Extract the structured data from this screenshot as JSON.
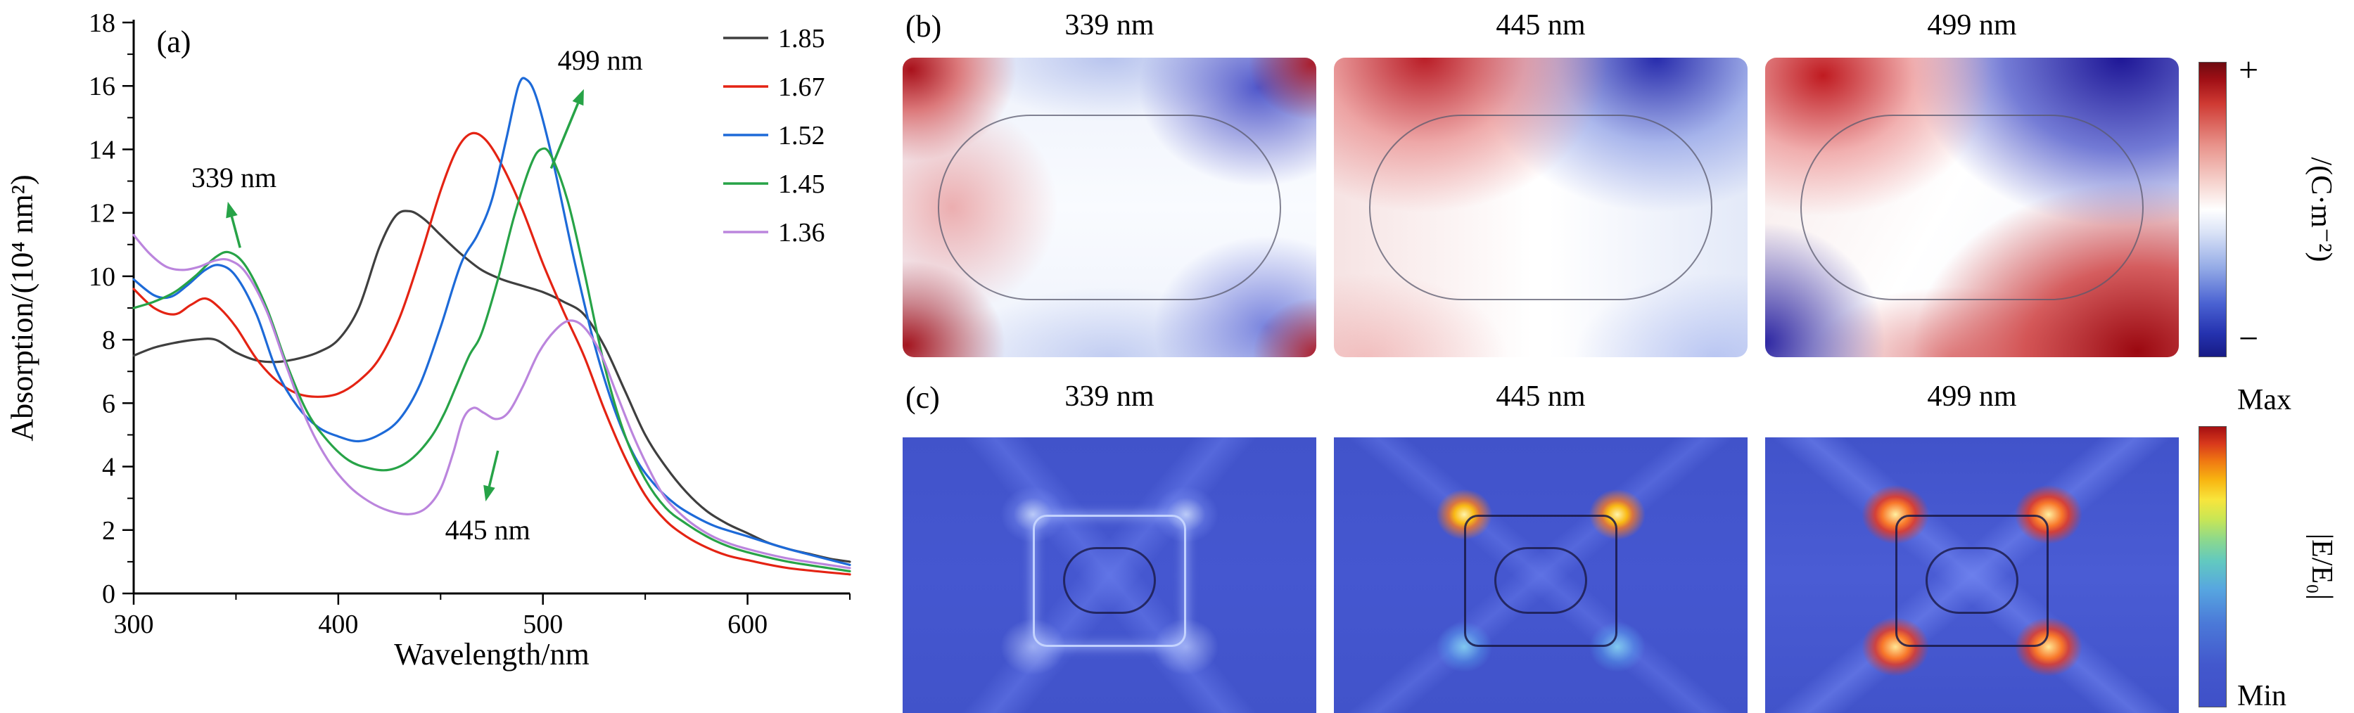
{
  "chart_data": {
    "type": "line",
    "tag": "(a)",
    "title": "",
    "xlabel": "Wavelength/nm",
    "ylabel": "Absorption/(10⁴ nm²)",
    "xlim": [
      300,
      650
    ],
    "ylim": [
      0,
      18
    ],
    "xticks_major": [
      300,
      400,
      500,
      600
    ],
    "xticks_minor": [
      350,
      450,
      550,
      650
    ],
    "yticks_major": [
      0,
      2,
      4,
      6,
      8,
      10,
      12,
      14,
      16,
      18
    ],
    "yticks_minor": [
      1,
      3,
      5,
      7,
      9,
      11,
      13,
      15,
      17
    ],
    "grid": false,
    "legend_position": "top-right-inside",
    "series": [
      {
        "name": "1.85",
        "color": "#3f3f3f",
        "points": [
          [
            300,
            7.5
          ],
          [
            310,
            7.75
          ],
          [
            320,
            7.9
          ],
          [
            330,
            8.0
          ],
          [
            340,
            8.0
          ],
          [
            350,
            7.6
          ],
          [
            360,
            7.35
          ],
          [
            370,
            7.3
          ],
          [
            380,
            7.4
          ],
          [
            390,
            7.6
          ],
          [
            400,
            8.0
          ],
          [
            410,
            9.0
          ],
          [
            420,
            10.9
          ],
          [
            428,
            11.9
          ],
          [
            435,
            12.05
          ],
          [
            442,
            11.8
          ],
          [
            450,
            11.3
          ],
          [
            460,
            10.7
          ],
          [
            470,
            10.2
          ],
          [
            480,
            9.9
          ],
          [
            490,
            9.7
          ],
          [
            500,
            9.5
          ],
          [
            510,
            9.2
          ],
          [
            520,
            8.8
          ],
          [
            530,
            7.8
          ],
          [
            540,
            6.4
          ],
          [
            550,
            5.0
          ],
          [
            560,
            4.0
          ],
          [
            570,
            3.2
          ],
          [
            580,
            2.6
          ],
          [
            590,
            2.2
          ],
          [
            600,
            1.9
          ],
          [
            610,
            1.6
          ],
          [
            620,
            1.4
          ],
          [
            630,
            1.25
          ],
          [
            640,
            1.1
          ],
          [
            650,
            1.0
          ]
        ]
      },
      {
        "name": "1.67",
        "color": "#e42313",
        "points": [
          [
            300,
            9.6
          ],
          [
            310,
            9.0
          ],
          [
            320,
            8.8
          ],
          [
            328,
            9.1
          ],
          [
            335,
            9.3
          ],
          [
            342,
            9.0
          ],
          [
            350,
            8.4
          ],
          [
            360,
            7.4
          ],
          [
            370,
            6.7
          ],
          [
            380,
            6.3
          ],
          [
            390,
            6.2
          ],
          [
            400,
            6.3
          ],
          [
            410,
            6.7
          ],
          [
            420,
            7.4
          ],
          [
            430,
            8.7
          ],
          [
            440,
            10.6
          ],
          [
            450,
            12.7
          ],
          [
            458,
            14.0
          ],
          [
            465,
            14.5
          ],
          [
            472,
            14.3
          ],
          [
            480,
            13.5
          ],
          [
            490,
            12.1
          ],
          [
            500,
            10.4
          ],
          [
            510,
            8.9
          ],
          [
            520,
            7.5
          ],
          [
            530,
            5.8
          ],
          [
            540,
            4.3
          ],
          [
            550,
            3.1
          ],
          [
            560,
            2.3
          ],
          [
            570,
            1.8
          ],
          [
            580,
            1.45
          ],
          [
            590,
            1.2
          ],
          [
            600,
            1.05
          ],
          [
            620,
            0.8
          ],
          [
            650,
            0.6
          ]
        ]
      },
      {
        "name": "1.52",
        "color": "#1d6ad8",
        "points": [
          [
            300,
            9.9
          ],
          [
            310,
            9.4
          ],
          [
            318,
            9.35
          ],
          [
            326,
            9.7
          ],
          [
            335,
            10.2
          ],
          [
            342,
            10.35
          ],
          [
            350,
            10.0
          ],
          [
            360,
            8.8
          ],
          [
            370,
            7.0
          ],
          [
            380,
            5.9
          ],
          [
            390,
            5.25
          ],
          [
            400,
            4.95
          ],
          [
            410,
            4.8
          ],
          [
            420,
            5.0
          ],
          [
            430,
            5.5
          ],
          [
            440,
            6.6
          ],
          [
            450,
            8.4
          ],
          [
            460,
            10.4
          ],
          [
            468,
            11.3
          ],
          [
            475,
            12.4
          ],
          [
            482,
            14.3
          ],
          [
            488,
            16.0
          ],
          [
            492,
            16.2
          ],
          [
            497,
            15.6
          ],
          [
            505,
            13.6
          ],
          [
            515,
            10.6
          ],
          [
            525,
            7.9
          ],
          [
            535,
            5.8
          ],
          [
            545,
            4.3
          ],
          [
            555,
            3.4
          ],
          [
            565,
            2.8
          ],
          [
            575,
            2.4
          ],
          [
            585,
            2.1
          ],
          [
            600,
            1.8
          ],
          [
            620,
            1.4
          ],
          [
            650,
            0.9
          ]
        ]
      },
      {
        "name": "1.45",
        "color": "#27a347",
        "points": [
          [
            300,
            9.0
          ],
          [
            310,
            9.2
          ],
          [
            320,
            9.5
          ],
          [
            330,
            10.0
          ],
          [
            340,
            10.6
          ],
          [
            347,
            10.75
          ],
          [
            355,
            10.3
          ],
          [
            365,
            9.0
          ],
          [
            375,
            7.2
          ],
          [
            385,
            5.7
          ],
          [
            395,
            4.8
          ],
          [
            405,
            4.2
          ],
          [
            415,
            3.95
          ],
          [
            425,
            3.9
          ],
          [
            435,
            4.2
          ],
          [
            445,
            4.9
          ],
          [
            452,
            5.7
          ],
          [
            458,
            6.6
          ],
          [
            464,
            7.5
          ],
          [
            470,
            8.2
          ],
          [
            478,
            9.9
          ],
          [
            486,
            11.9
          ],
          [
            494,
            13.5
          ],
          [
            499,
            14.0
          ],
          [
            504,
            13.8
          ],
          [
            512,
            12.4
          ],
          [
            520,
            10.2
          ],
          [
            530,
            7.2
          ],
          [
            540,
            5.0
          ],
          [
            550,
            3.6
          ],
          [
            560,
            2.7
          ],
          [
            570,
            2.2
          ],
          [
            580,
            1.8
          ],
          [
            590,
            1.5
          ],
          [
            600,
            1.3
          ],
          [
            620,
            1.0
          ],
          [
            650,
            0.7
          ]
        ]
      },
      {
        "name": "1.36",
        "color": "#bb85dd",
        "points": [
          [
            300,
            11.3
          ],
          [
            308,
            10.7
          ],
          [
            316,
            10.3
          ],
          [
            324,
            10.2
          ],
          [
            332,
            10.3
          ],
          [
            340,
            10.5
          ],
          [
            347,
            10.5
          ],
          [
            355,
            10.1
          ],
          [
            365,
            8.9
          ],
          [
            375,
            7.1
          ],
          [
            385,
            5.4
          ],
          [
            395,
            4.2
          ],
          [
            405,
            3.4
          ],
          [
            415,
            2.9
          ],
          [
            425,
            2.6
          ],
          [
            435,
            2.5
          ],
          [
            443,
            2.7
          ],
          [
            450,
            3.3
          ],
          [
            456,
            4.4
          ],
          [
            461,
            5.5
          ],
          [
            466,
            5.85
          ],
          [
            471,
            5.7
          ],
          [
            477,
            5.5
          ],
          [
            483,
            5.7
          ],
          [
            490,
            6.5
          ],
          [
            498,
            7.6
          ],
          [
            506,
            8.3
          ],
          [
            513,
            8.6
          ],
          [
            520,
            8.4
          ],
          [
            528,
            7.6
          ],
          [
            536,
            6.3
          ],
          [
            544,
            5.0
          ],
          [
            552,
            3.9
          ],
          [
            560,
            3.0
          ],
          [
            570,
            2.35
          ],
          [
            580,
            1.9
          ],
          [
            590,
            1.6
          ],
          [
            600,
            1.4
          ],
          [
            620,
            1.1
          ],
          [
            650,
            0.8
          ]
        ]
      }
    ],
    "annotations": [
      {
        "text": "339 nm",
        "label_xy": [
          349,
          13.1
        ],
        "arrow_from": [
          352,
          10.9
        ],
        "arrow_to": [
          346,
          12.35
        ]
      },
      {
        "text": "499 nm",
        "label_xy": [
          528,
          16.8
        ],
        "arrow_from": [
          504,
          13.4
        ],
        "arrow_to": [
          520,
          15.9
        ]
      },
      {
        "text": "445 nm",
        "label_xy": [
          473,
          2.0
        ],
        "arrow_from": [
          478,
          4.5
        ],
        "arrow_to": [
          472,
          2.9
        ]
      }
    ],
    "annotation_arrow_color": "#27a347"
  },
  "panel_b": {
    "tag": "(b)",
    "maps": [
      {
        "label": "339 nm"
      },
      {
        "label": "445 nm"
      },
      {
        "label": "499 nm"
      }
    ],
    "colorbar": {
      "top": "+",
      "bottom": "−",
      "label": "/(C·m⁻²)"
    }
  },
  "panel_c": {
    "tag": "(c)",
    "maps": [
      {
        "label": "339 nm"
      },
      {
        "label": "445 nm"
      },
      {
        "label": "499 nm"
      }
    ],
    "colorbar": {
      "top": "Max",
      "bottom": "Min",
      "label": "|E/E₀|"
    }
  },
  "colors": {
    "annotation_arrow": "#27a347",
    "charge_positive_end": "#6e0a10",
    "charge_negative_end": "#171b86",
    "field_background": "#4254cb",
    "field_hotspot": "#f8772a"
  }
}
